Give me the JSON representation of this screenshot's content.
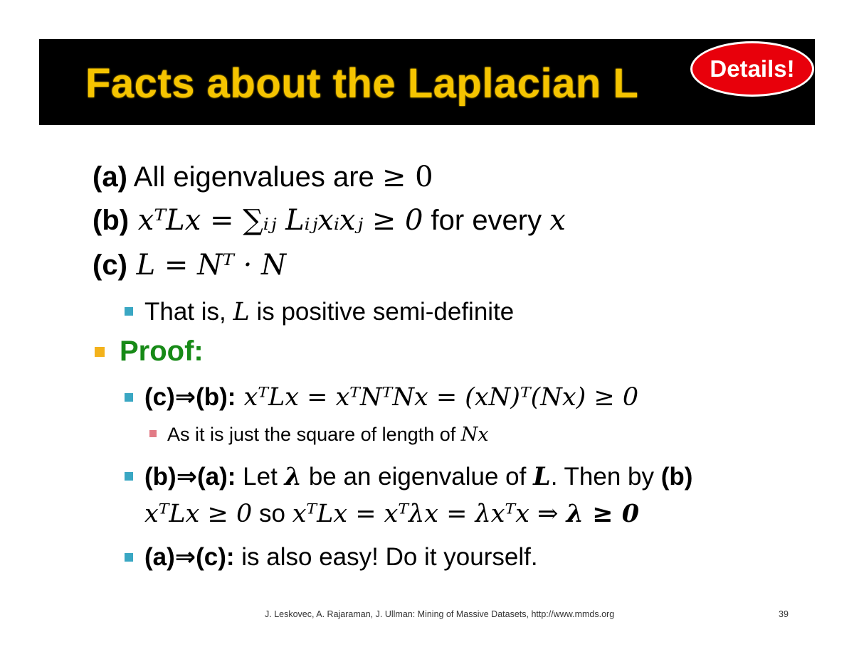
{
  "slide": {
    "title": "Facts about the Laplacian L",
    "badge": "Details!",
    "facts": [
      {
        "label": "(a)",
        "text": " All eigenvalues are ",
        "math": "≥ 0"
      },
      {
        "label": "(b)",
        "math": " xᵀLx = ∑ᵢⱼ Lᵢⱼxᵢxⱼ ≥ 0",
        "text": "  for every ",
        "math2": "x"
      },
      {
        "label": "(c)",
        "math": " L  =  Nᵀ · N"
      }
    ],
    "semidefinite": {
      "pre": "That is, ",
      "math": "L",
      "post": " is positive semi-definite"
    },
    "proof_label": "Proof:",
    "proof_cb": {
      "label": "(c)⇒(b):",
      "math": " xᵀLx = xᵀNᵀNx = (xN)ᵀ(Nx) ≥ 0"
    },
    "proof_cb_note": {
      "pre": "As it is just the square of length of ",
      "math": "Nx"
    },
    "proof_ba": {
      "label": "(b)⇒(a):",
      "t1": " Let ",
      "lambda": "λ",
      "t2": " be an eigenvalue of ",
      "L": "L",
      "t3": ". Then by ",
      "ref": "(b)",
      "m1": "xᵀLx ≥ 0",
      "t4": " so ",
      "m2": "xᵀLx = xᵀλx = λxᵀx ⇒ ",
      "m3": "λ ≥ 0"
    },
    "proof_ac": {
      "label": "(a)⇒(c):",
      "text": " is also easy! Do it yourself."
    },
    "footer": "J. Leskovec, A. Rajaraman, J. Ullman: Mining of Massive Datasets, http://www.mmds.org",
    "page_number": "39"
  }
}
